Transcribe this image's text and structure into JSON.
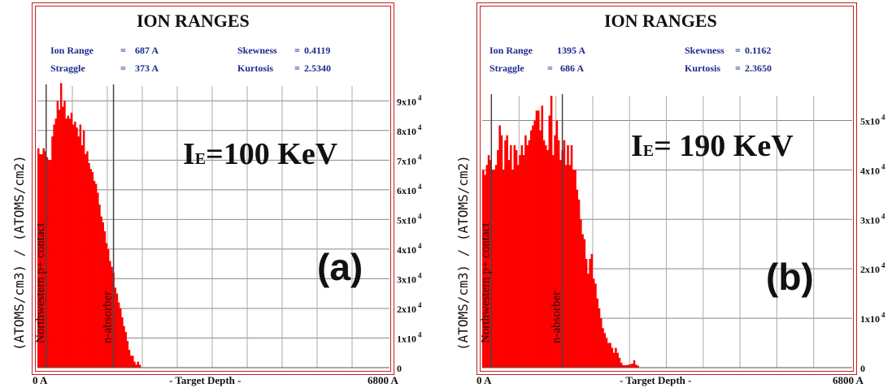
{
  "colors": {
    "bar": "#ff0000",
    "frame": "#c02020",
    "stat_text": "#1c2a8c",
    "grid": "#444444"
  },
  "chart_data": [
    {
      "type": "bar",
      "title": "ION RANGES",
      "stats": {
        "ion_range_label": "Ion Range",
        "ion_range_value": "687 A",
        "straggle_label": "Straggle",
        "straggle_value": "373 A",
        "skewness_label": "Skewness",
        "skewness_value": "0.4119",
        "kurtosis_label": "Kurtosis",
        "kurtosis_value": "2.5340"
      },
      "ylabel": "(ATOMS/cm3) / (ATOMS/cm2)",
      "xlabel": "- Target Depth -",
      "x_start_label": "0 A",
      "x_end_label": "6800 A",
      "xlim": [
        0,
        6800
      ],
      "ylim": [
        0,
        95000
      ],
      "y_ticks": [
        0,
        10000,
        20000,
        30000,
        40000,
        50000,
        60000,
        70000,
        80000,
        90000
      ],
      "y_tick_labels": [
        {
          "mant": "0",
          "exp": ""
        },
        {
          "mant": "1x10",
          "exp": "4"
        },
        {
          "mant": "2x10",
          "exp": "4"
        },
        {
          "mant": "3x10",
          "exp": "4"
        },
        {
          "mant": "4x10",
          "exp": "4"
        },
        {
          "mant": "5x10",
          "exp": "4"
        },
        {
          "mant": "6x10",
          "exp": "4"
        },
        {
          "mant": "7x10",
          "exp": "4"
        },
        {
          "mant": "8x10",
          "exp": "4"
        },
        {
          "mant": "9x10",
          "exp": "4"
        }
      ],
      "x_grid": [
        680,
        1360,
        2040,
        2720,
        3400,
        4080,
        4760,
        5440,
        6120
      ],
      "energy_prefix": "I",
      "energy_sub": "E",
      "energy_value": "=100 KeV",
      "panel_tag": "(a)",
      "markers": [
        {
          "label": "Northwestern p+ contact",
          "x": 170
        },
        {
          "label": "n-absorber",
          "x": 1480
        }
      ],
      "bin_width": 34,
      "values": [
        74000,
        72000,
        72000,
        74000,
        73000,
        71000,
        70000,
        70000,
        78000,
        82000,
        84000,
        90000,
        87000,
        96000,
        88000,
        90000,
        84000,
        85000,
        84000,
        86000,
        82000,
        83000,
        81000,
        78000,
        82000,
        75000,
        80000,
        72000,
        73000,
        69000,
        67000,
        66000,
        63000,
        62000,
        59000,
        55000,
        51000,
        49000,
        46000,
        42000,
        40000,
        36000,
        34000,
        32000,
        27000,
        25000,
        22000,
        20000,
        17000,
        14000,
        12000,
        9000,
        6000,
        4000,
        4000,
        2000,
        1000,
        2000,
        1000
      ]
    },
    {
      "type": "bar",
      "title": "ION RANGES",
      "stats": {
        "ion_range_label": "Ion Range",
        "ion_range_value": "1395 A",
        "straggle_label": "Straggle",
        "straggle_value": "686 A",
        "skewness_label": "Skewness",
        "skewness_value": "0.1162",
        "kurtosis_label": "Kurtosis",
        "kurtosis_value": "2.3650"
      },
      "ylabel": "(ATOMS/cm3) / (ATOMS/cm2)",
      "xlabel": "- Target Depth -",
      "x_start_label": "0 A",
      "x_end_label": "6800 A",
      "xlim": [
        0,
        6800
      ],
      "ylim": [
        0,
        55000
      ],
      "y_ticks": [
        0,
        10000,
        20000,
        30000,
        40000,
        50000
      ],
      "y_tick_labels": [
        {
          "mant": "0",
          "exp": ""
        },
        {
          "mant": "1x10",
          "exp": "4"
        },
        {
          "mant": "2x10",
          "exp": "4"
        },
        {
          "mant": "3x10",
          "exp": "4"
        },
        {
          "mant": "4x10",
          "exp": "4"
        },
        {
          "mant": "5x10",
          "exp": "4"
        }
      ],
      "x_grid": [
        680,
        1360,
        2040,
        2720,
        3400,
        4080,
        4760,
        5440,
        6120
      ],
      "energy_prefix": "I",
      "energy_sub": "E",
      "energy_value": "= 190 KeV",
      "panel_tag": "(b)",
      "markers": [
        {
          "label": "Northwestern p+ contact",
          "x": 170
        },
        {
          "label": "n-absorber",
          "x": 1480
        }
      ],
      "bin_width": 34,
      "values": [
        40000,
        39000,
        41000,
        43000,
        42000,
        40000,
        40000,
        41000,
        44000,
        49000,
        47000,
        40000,
        46000,
        47000,
        42000,
        45000,
        40000,
        45000,
        44000,
        41000,
        43000,
        45000,
        43000,
        47000,
        45000,
        46000,
        48000,
        49000,
        50000,
        52000,
        52000,
        48000,
        53000,
        46000,
        45000,
        44000,
        51000,
        55000,
        43000,
        47000,
        50000,
        46000,
        42000,
        44000,
        46000,
        41000,
        45000,
        41000,
        45000,
        40000,
        40000,
        36000,
        34000,
        30000,
        27000,
        26000,
        22000,
        19000,
        22000,
        23000,
        18000,
        17000,
        14000,
        12000,
        10000,
        8000,
        7000,
        6000,
        5000,
        5000,
        4000,
        3000,
        4000,
        3000,
        2000,
        1000,
        500,
        500,
        500,
        600,
        700,
        800,
        1500,
        600,
        400
      ]
    }
  ]
}
